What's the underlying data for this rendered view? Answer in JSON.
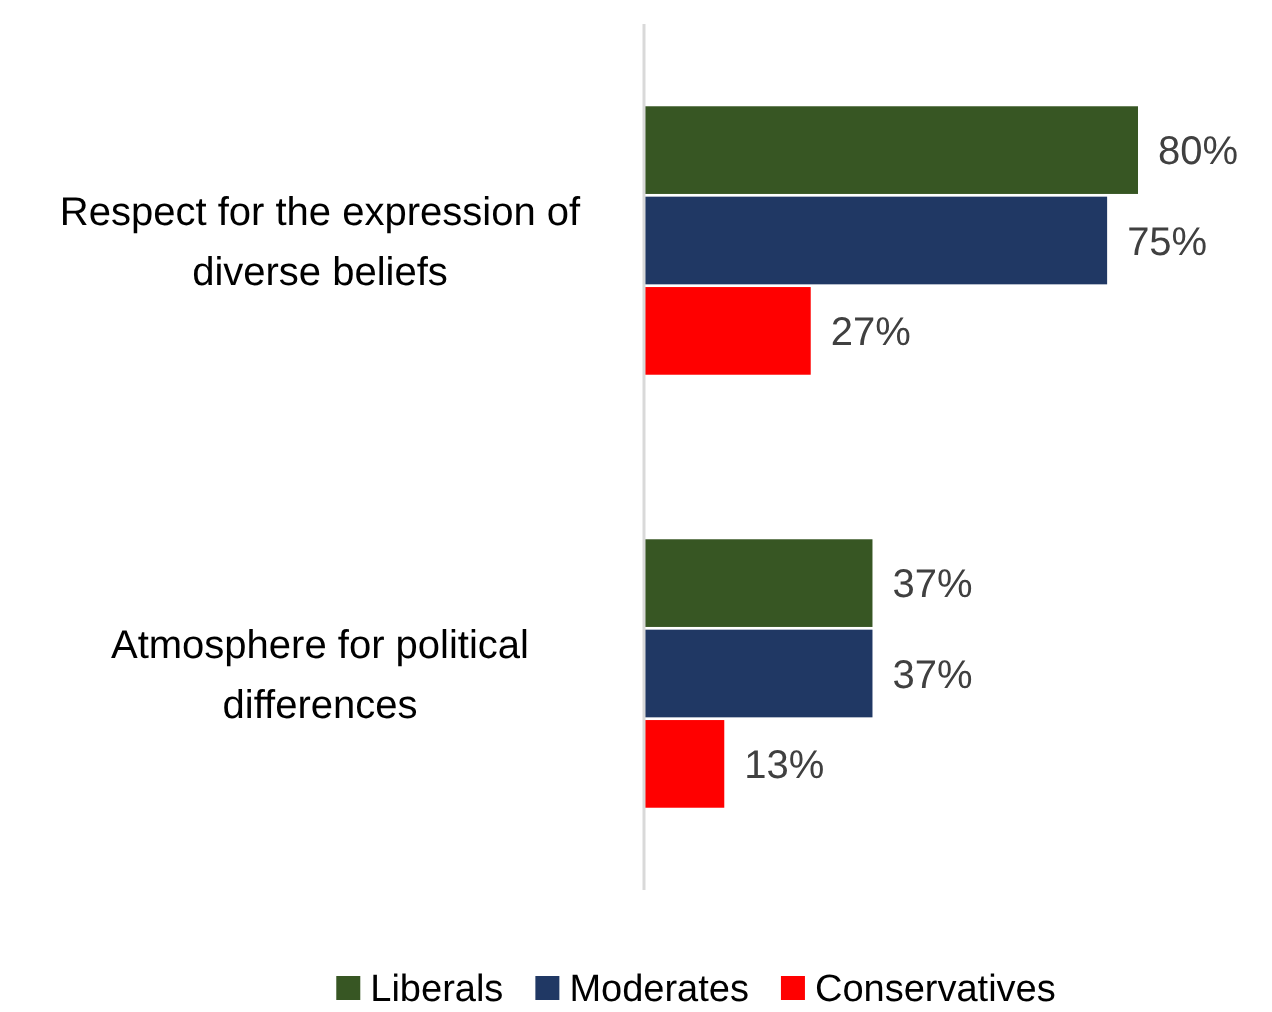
{
  "chart_data": {
    "type": "bar",
    "orientation": "horizontal",
    "categories": [
      "Respect for the expression of diverse beliefs",
      "Atmosphere for political differences"
    ],
    "series": [
      {
        "name": "Liberals",
        "color": "#375623",
        "values": [
          80,
          37
        ],
        "value_labels": [
          "80%",
          "37%"
        ]
      },
      {
        "name": "Moderates",
        "color": "#203864",
        "values": [
          75,
          37
        ],
        "value_labels": [
          "75%",
          "37%"
        ]
      },
      {
        "name": "Conservatives",
        "color": "#ff0000",
        "values": [
          27,
          13
        ],
        "value_labels": [
          "27%",
          "13%"
        ]
      }
    ],
    "tick_labels": "y",
    "legend": "bottom"
  }
}
